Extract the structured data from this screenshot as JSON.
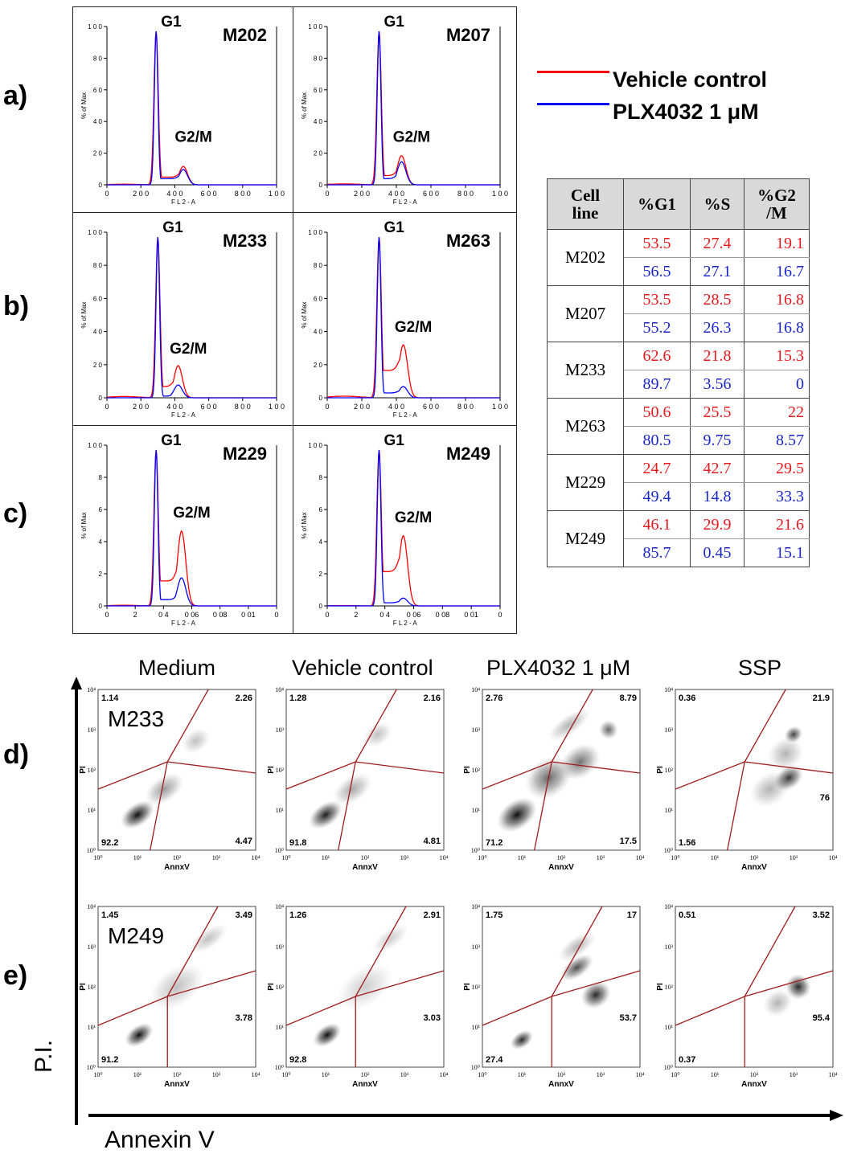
{
  "rows": {
    "a": "a)",
    "b": "b)",
    "c": "c)",
    "d": "d)",
    "e": "e)"
  },
  "legend": {
    "items": [
      {
        "label": "Vehicle control",
        "color": "#ff0000"
      },
      {
        "label": "PLX4032 1 μM",
        "color": "#0000ff"
      }
    ]
  },
  "histograms": {
    "ylabel": "% of Max",
    "xlabel": "F L 2 - A",
    "peak_labels": {
      "g1": "G1",
      "g2m": "G2/M"
    },
    "panels": [
      {
        "id": "M202",
        "name": "M202",
        "xticks": [
          "0",
          "2 0 0",
          "4 0 0",
          "6 0 0",
          "8 0 0",
          "1 0 0"
        ],
        "yticks": [
          "0",
          "2 0",
          "4 0",
          "6 0",
          "8 0",
          "1 0 0"
        ]
      },
      {
        "id": "M207",
        "name": "M207",
        "xticks": [
          "0",
          "2 0 0",
          "4 0 0",
          "6 0 0",
          "8 0 0",
          "1 0 0"
        ],
        "yticks": [
          "0",
          "2 0",
          "4 0",
          "6 0",
          "8 0",
          "1 0 0"
        ]
      },
      {
        "id": "M233",
        "name": "M233",
        "xticks": [
          "0",
          "2 0 0",
          "4 0 0",
          "6 0 0",
          "8 0 0",
          "1 0 0"
        ],
        "yticks": [
          "0",
          "2 0",
          "4 0",
          "6 0",
          "8 0",
          "1 0 0"
        ]
      },
      {
        "id": "M263",
        "name": "M263",
        "xticks": [
          "0",
          "2 0 0",
          "4 0 0",
          "6 0 0",
          "8 0 0",
          "1 0 0"
        ],
        "yticks": [
          "0",
          "2 0",
          "4 0",
          "6 0",
          "8 0",
          "1 0 0"
        ]
      },
      {
        "id": "M229",
        "name": "M229",
        "xticks": [
          "0",
          "2",
          "0 4",
          "0 06",
          "0 08",
          "0 01",
          "0"
        ],
        "yticks": [
          "0",
          "2",
          "4",
          "6",
          "8",
          "1 0 0"
        ]
      },
      {
        "id": "M249",
        "name": "M249",
        "xticks": [
          "0",
          "2",
          "0 4",
          "0 06",
          "0 08",
          "0 01",
          "0"
        ],
        "yticks": [
          "0",
          "2",
          "4",
          "6",
          "8",
          "1 0 0"
        ]
      }
    ]
  },
  "table": {
    "headers": [
      "Cell line",
      "%G1",
      "%S",
      "%G2 /M"
    ],
    "rows": [
      {
        "cell": "M202",
        "vehicle": [
          "53.5",
          "27.4",
          "19.1"
        ],
        "plx": [
          "56.5",
          "27.1",
          "16.7"
        ]
      },
      {
        "cell": "M207",
        "vehicle": [
          "53.5",
          "28.5",
          "16.8"
        ],
        "plx": [
          "55.2",
          "26.3",
          "16.8"
        ]
      },
      {
        "cell": "M233",
        "vehicle": [
          "62.6",
          "21.8",
          "15.3"
        ],
        "plx": [
          "89.7",
          "3.56",
          "0"
        ]
      },
      {
        "cell": "M263",
        "vehicle": [
          "50.6",
          "25.5",
          "22"
        ],
        "plx": [
          "80.5",
          "9.75",
          "8.57"
        ]
      },
      {
        "cell": "M229",
        "vehicle": [
          "24.7",
          "42.7",
          "29.5"
        ],
        "plx": [
          "49.4",
          "14.8",
          "33.3"
        ]
      },
      {
        "cell": "M249",
        "vehicle": [
          "46.1",
          "29.9",
          "21.6"
        ],
        "plx": [
          "85.7",
          "0.45",
          "15.1"
        ]
      }
    ]
  },
  "dotplots": {
    "columns": [
      "Medium",
      "Vehicle control",
      "PLX4032 1 μM",
      "SSP"
    ],
    "ylabel": "PI",
    "xlabel": "AnnxV",
    "axis_y_label": "P.I.",
    "axis_x_label": "Annexin V",
    "d": {
      "cell": "M233",
      "panels": [
        {
          "ul": "1.14",
          "ur": "2.26",
          "ll": "92.2",
          "lr": "4.47"
        },
        {
          "ul": "1.28",
          "ur": "2.16",
          "ll": "91.8",
          "lr": "4.81"
        },
        {
          "ul": "2.76",
          "ur": "8.79",
          "ll": "71.2",
          "lr": "17.5"
        },
        {
          "ul": "0.36",
          "ur": "21.9",
          "ll": "1.56",
          "lr": "76"
        }
      ]
    },
    "e": {
      "cell": "M249",
      "panels": [
        {
          "ul": "1.45",
          "ur": "3.49",
          "ll": "91.2",
          "lr": "3.78"
        },
        {
          "ul": "1.26",
          "ur": "2.91",
          "ll": "92.8",
          "lr": "3.03"
        },
        {
          "ul": "1.75",
          "ur": "17",
          "ll": "27.4",
          "lr": "53.7"
        },
        {
          "ul": "0.51",
          "ur": "3.52",
          "ll": "0.37",
          "lr": "95.4"
        }
      ]
    }
  },
  "chart_data": [
    {
      "type": "line",
      "description_free": true,
      "xlabel": "F L 2 - A",
      "ylabel": "% of Max",
      "xlim": [
        0,
        1000
      ],
      "ylim": [
        0,
        100
      ],
      "series_names": [
        "Vehicle control",
        "PLX4032 1 μM"
      ]
    },
    {
      "type": "table",
      "headers": [
        "Cell line",
        "%G1",
        "%S",
        "%G2 /M"
      ],
      "rows": [
        [
          "M202",
          "53.5",
          "27.4",
          "19.1"
        ],
        [
          "M202",
          "56.5",
          "27.1",
          "16.7"
        ],
        [
          "M207",
          "53.5",
          "28.5",
          "16.8"
        ],
        [
          "M207",
          "55.2",
          "26.3",
          "16.8"
        ],
        [
          "M233",
          "62.6",
          "21.8",
          "15.3"
        ],
        [
          "M233",
          "89.7",
          "3.56",
          "0"
        ],
        [
          "M263",
          "50.6",
          "25.5",
          "22"
        ],
        [
          "M263",
          "80.5",
          "9.75",
          "8.57"
        ],
        [
          "M229",
          "24.7",
          "42.7",
          "29.5"
        ],
        [
          "M229",
          "49.4",
          "14.8",
          "33.3"
        ],
        [
          "M249",
          "46.1",
          "29.9",
          "21.6"
        ],
        [
          "M249",
          "85.7",
          "0.45",
          "15.1"
        ]
      ]
    }
  ]
}
